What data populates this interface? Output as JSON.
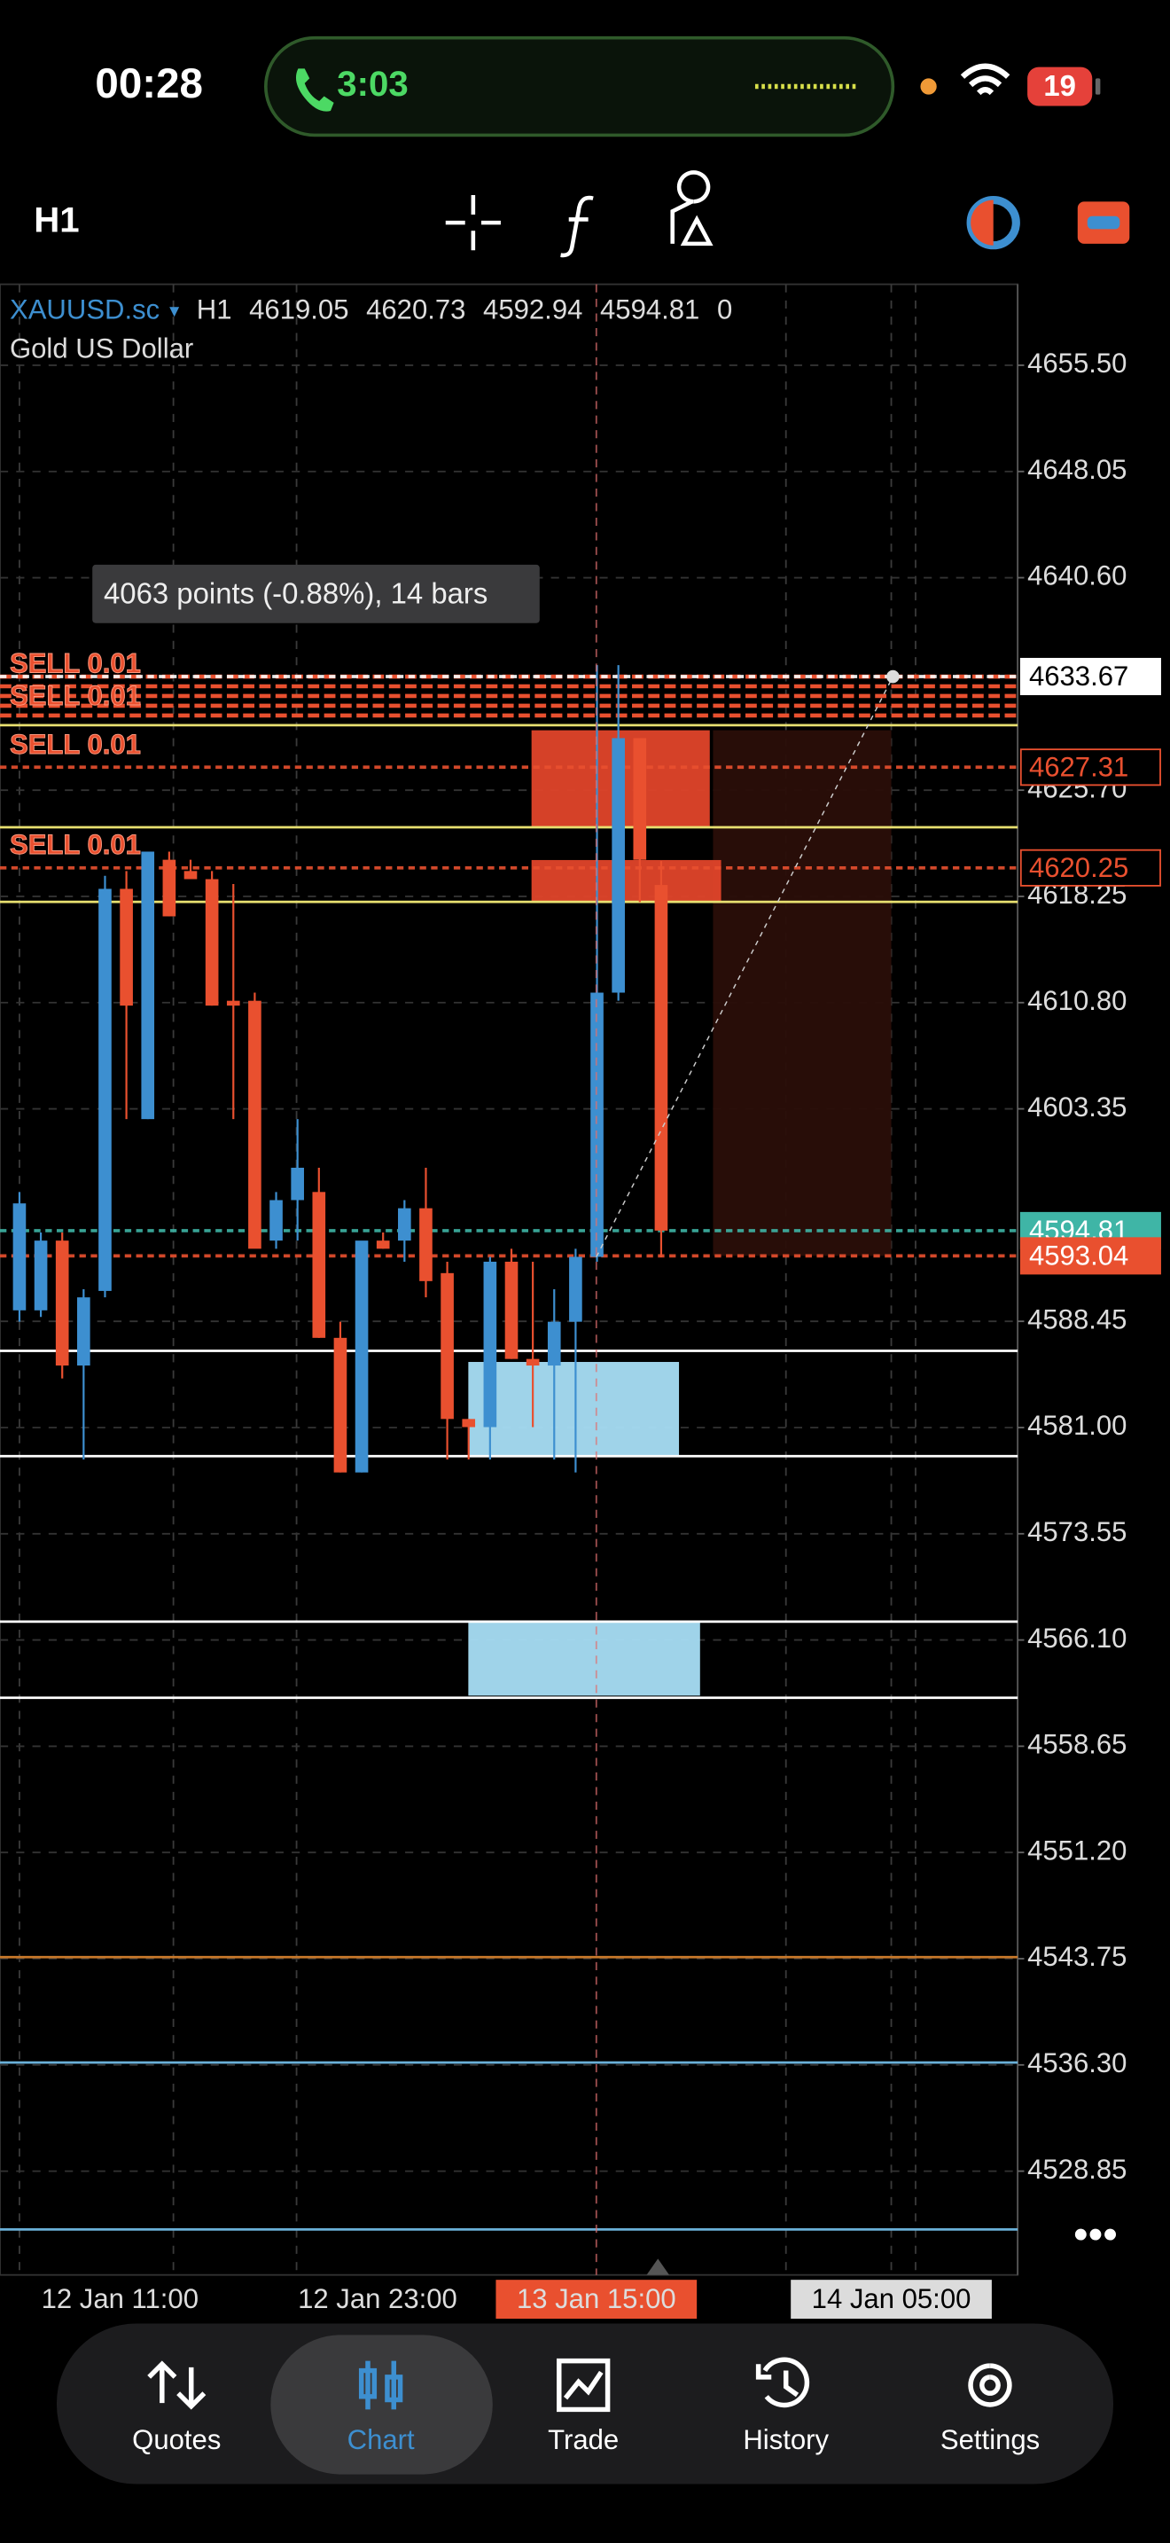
{
  "status_bar": {
    "time": "00:28",
    "call_duration": "3:03",
    "battery": "19"
  },
  "toolbar": {
    "timeframe": "H1"
  },
  "chart_data": {
    "type": "candlestick",
    "symbol": "XAUUSD.sc",
    "timeframe": "H1",
    "description": "Gold US Dollar",
    "volume": 0,
    "open": [
      4589.22,
      4589.22,
      4594.11,
      4585.35,
      4590.58,
      4618.78,
      4602.63,
      4620.82,
      4620.03,
      4619.46,
      4610.93,
      4610.93,
      4594.11,
      4596.95,
      4597.52,
      4587.29,
      4577.85,
      4594.11,
      4594.11,
      4596.38,
      4591.83,
      4581.6,
      4581.03,
      4592.63,
      4585.81,
      4585.35,
      4588.42,
      4592.97,
      4611.5,
      4629.35,
      4619.05
    ],
    "high": [
      4597.52,
      4594.68,
      4594.68,
      4590.7,
      4619.69,
      4620.03,
      4621.39,
      4621.39,
      4620.82,
      4620.03,
      4619.12,
      4611.5,
      4597.52,
      4602.63,
      4599.22,
      4588.42,
      4593.54,
      4594.68,
      4596.95,
      4599.22,
      4592.63,
      4581.6,
      4592.97,
      4593.54,
      4592.63,
      4590.7,
      4593.54,
      4634.47,
      4634.47,
      4629.35,
      4620.73
    ],
    "low": [
      4588.42,
      4588.76,
      4584.44,
      4578.76,
      4590.13,
      4602.63,
      4602.63,
      4616.85,
      4619.46,
      4610.59,
      4602.63,
      4594.11,
      4593.54,
      4594.11,
      4587.29,
      4577.85,
      4577.85,
      4593.54,
      4592.63,
      4590.13,
      4578.76,
      4578.76,
      4578.76,
      4585.81,
      4581.03,
      4578.76,
      4577.85,
      4592.63,
      4610.93,
      4617.85,
      4592.94
    ],
    "close": [
      4596.72,
      4594.11,
      4585.35,
      4590.13,
      4618.78,
      4610.59,
      4621.39,
      4616.85,
      4619.46,
      4610.59,
      4610.59,
      4593.54,
      4596.95,
      4599.22,
      4587.29,
      4577.85,
      4594.11,
      4593.54,
      4596.38,
      4591.27,
      4581.6,
      4581.03,
      4592.63,
      4585.81,
      4585.35,
      4588.42,
      4592.97,
      4611.5,
      4629.35,
      4620.82,
      4594.81
    ],
    "up_color": "#3d8fd0",
    "down_color": "#e9502f",
    "ylim": [
      4521.57,
      4661.18
    ],
    "yticks": [
      {
        "value": 4655.5,
        "label": "4655.50"
      },
      4648.05,
      {
        "value": 4640.6,
        "label": "4640.60"
      },
      {
        "value": 4625.7,
        "label": "4625.70"
      },
      4618.25,
      {
        "value": 4610.8,
        "label": "4610.80"
      },
      4603.35,
      4588.45,
      {
        "value": 4581,
        "label": "4581.00"
      },
      4573.55,
      {
        "value": 4566.1,
        "label": "4566.10"
      },
      4558.65,
      {
        "value": 4551.2,
        "label": "4551.20"
      },
      4543.75,
      {
        "value": 4536.3,
        "label": "4536.30"
      },
      4528.85
    ],
    "grid": true,
    "xtick_labels": [
      "12 Jan 11:00",
      "12 Jan 23:00",
      "13 Jan 15:00",
      "14 Jan 05:00"
    ],
    "measure_label": "4063 points (-0.88%), 14 bars",
    "order_label": "SELL 0.01",
    "price_labels": [
      {
        "value": 4633.67,
        "color": "#ffffff"
      },
      {
        "value": 4627.31,
        "color": "#e9502f"
      },
      {
        "value": 4620.25,
        "color": "#e9502f"
      },
      {
        "value": 4594.81,
        "color": "#3fb5a6"
      },
      {
        "value": 4593.04,
        "color": "#e9502f"
      }
    ],
    "levels": [
      {
        "value": 4630.26,
        "color": "#e8e070"
      },
      {
        "value": 4623.1,
        "color": "#e8e070"
      },
      {
        "value": 4617.87,
        "color": "#e8e070"
      },
      {
        "value": 4586.38,
        "color": "#ffffff"
      },
      {
        "value": 4578.99,
        "color": "#ffffff"
      },
      {
        "value": 4567.39,
        "color": "#ffffff"
      },
      {
        "value": 4562.05,
        "color": "#ffffff"
      },
      {
        "value": 4543.86,
        "color": "#c8782a"
      },
      {
        "value": 4536.47,
        "color": "#6ab0d8"
      },
      {
        "value": 4524.76,
        "color": "#6ab0d8"
      }
    ],
    "zones": [
      {
        "top": 4629.9,
        "bottom": 4593.04,
        "color": "#2a0e08"
      },
      {
        "top": 4585.6,
        "bottom": 4578.99,
        "color": "#a8def5"
      },
      {
        "top": 4567.39,
        "bottom": 4562.2,
        "color": "#a8def5"
      },
      {
        "top": 4629.9,
        "bottom": 4623.1,
        "color": "#e0452a"
      },
      {
        "top": 4620.8,
        "bottom": 4617.9,
        "color": "#e0452a"
      }
    ]
  },
  "nav": {
    "items": [
      "Quotes",
      "Chart",
      "Trade",
      "History",
      "Settings"
    ]
  }
}
